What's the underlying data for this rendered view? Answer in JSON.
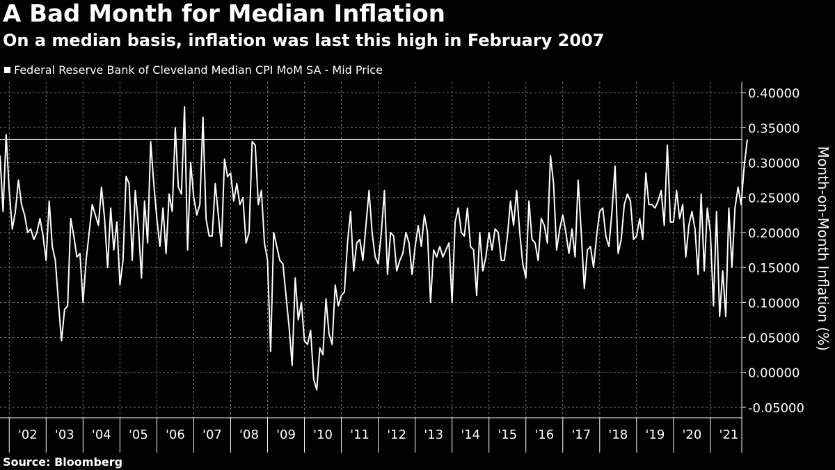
{
  "chart_data": {
    "type": "line",
    "title": "A Bad Month for Median Inflation",
    "subtitle": "On a median basis, inflation was last this high in February 2007",
    "source": "Source: Bloomberg",
    "ylabel": "Month-on-Month Inflation (%)",
    "ylim": [
      -0.065,
      0.415
    ],
    "yticks": [
      -0.05,
      0.0,
      0.05,
      0.1,
      0.15,
      0.2,
      0.25,
      0.3,
      0.35,
      0.4
    ],
    "ytick_labels": [
      "-0.05000",
      "0.00000",
      "0.05000",
      "0.10000",
      "0.15000",
      "0.20000",
      "0.25000",
      "0.30000",
      "0.35000",
      "0.40000"
    ],
    "xlim": [
      2001.75,
      2021.85
    ],
    "xtick_labels": [
      "'02",
      "'03",
      "'04",
      "'05",
      "'06",
      "'07",
      "'08",
      "'09",
      "'10",
      "'11",
      "'12",
      "'13",
      "'14",
      "'15",
      "'16",
      "'17",
      "'18",
      "'19",
      "'20",
      "'21"
    ],
    "reference_line": 0.333,
    "grid": true,
    "legend_position": "top-left",
    "series": [
      {
        "name": "Federal Reserve Bank of Cleveland Median CPI MoM SA - Mid Price",
        "color": "#ffffff",
        "x_start": 2001.75,
        "x_step_months": 1,
        "values": [
          0.31,
          0.23,
          0.34,
          0.26,
          0.205,
          0.23,
          0.275,
          0.24,
          0.225,
          0.2,
          0.205,
          0.19,
          0.2,
          0.22,
          0.195,
          0.16,
          0.245,
          0.18,
          0.16,
          0.1,
          0.045,
          0.09,
          0.095,
          0.22,
          0.195,
          0.165,
          0.17,
          0.1,
          0.16,
          0.2,
          0.24,
          0.225,
          0.21,
          0.265,
          0.22,
          0.15,
          0.235,
          0.175,
          0.215,
          0.125,
          0.16,
          0.28,
          0.27,
          0.16,
          0.26,
          0.21,
          0.135,
          0.245,
          0.185,
          0.33,
          0.27,
          0.22,
          0.18,
          0.235,
          0.17,
          0.255,
          0.23,
          0.35,
          0.265,
          0.255,
          0.38,
          0.175,
          0.3,
          0.25,
          0.225,
          0.24,
          0.365,
          0.22,
          0.195,
          0.195,
          0.27,
          0.225,
          0.18,
          0.305,
          0.28,
          0.285,
          0.245,
          0.27,
          0.24,
          0.25,
          0.185,
          0.2,
          0.33,
          0.325,
          0.24,
          0.26,
          0.185,
          0.16,
          0.03,
          0.2,
          0.18,
          0.16,
          0.155,
          0.11,
          0.065,
          0.01,
          0.135,
          0.075,
          0.1,
          0.045,
          0.04,
          0.06,
          -0.01,
          -0.025,
          0.035,
          0.025,
          0.105,
          0.055,
          0.04,
          0.125,
          0.095,
          0.11,
          0.115,
          0.185,
          0.23,
          0.145,
          0.185,
          0.19,
          0.16,
          0.21,
          0.26,
          0.2,
          0.165,
          0.155,
          0.2,
          0.26,
          0.14,
          0.2,
          0.195,
          0.145,
          0.16,
          0.17,
          0.2,
          0.185,
          0.14,
          0.18,
          0.21,
          0.18,
          0.225,
          0.2,
          0.1,
          0.175,
          0.165,
          0.18,
          0.165,
          0.175,
          0.185,
          0.1,
          0.215,
          0.235,
          0.2,
          0.195,
          0.235,
          0.18,
          0.175,
          0.11,
          0.2,
          0.145,
          0.165,
          0.2,
          0.175,
          0.205,
          0.2,
          0.16,
          0.16,
          0.195,
          0.245,
          0.21,
          0.26,
          0.2,
          0.155,
          0.135,
          0.245,
          0.19,
          0.185,
          0.16,
          0.22,
          0.21,
          0.185,
          0.31,
          0.27,
          0.175,
          0.205,
          0.225,
          0.2,
          0.17,
          0.205,
          0.165,
          0.275,
          0.2,
          0.12,
          0.175,
          0.18,
          0.15,
          0.195,
          0.23,
          0.235,
          0.195,
          0.18,
          0.23,
          0.295,
          0.17,
          0.19,
          0.24,
          0.255,
          0.245,
          0.19,
          0.195,
          0.22,
          0.19,
          0.285,
          0.24,
          0.24,
          0.235,
          0.245,
          0.26,
          0.21,
          0.325,
          0.215,
          0.215,
          0.26,
          0.22,
          0.24,
          0.165,
          0.21,
          0.23,
          0.205,
          0.14,
          0.255,
          0.145,
          0.235,
          0.2,
          0.095,
          0.23,
          0.08,
          0.145,
          0.08,
          0.235,
          0.15,
          0.235,
          0.265,
          0.24,
          0.295,
          0.333
        ]
      }
    ]
  }
}
